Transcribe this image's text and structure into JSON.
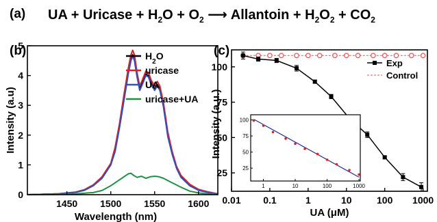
{
  "equation": {
    "label": "(a)",
    "reactants": [
      "UA",
      "Uricase",
      "H2O",
      "O2"
    ],
    "products": [
      "Allantoin",
      "H2O2",
      "CO2"
    ]
  },
  "chart_data": [
    {
      "panel_label": "(b)",
      "type": "line",
      "xlabel": "Wavelength (nm)",
      "ylabel": "Intensity (a.u)",
      "xlim": [
        1405,
        1622
      ],
      "ylim": [
        0,
        5
      ],
      "xticks": [
        1450,
        1500,
        1550,
        1600
      ],
      "yticks": [
        0,
        1,
        2,
        3,
        4,
        5
      ],
      "legend_position": "top-right",
      "series": [
        {
          "name": "H2O",
          "color": "#000000",
          "x": [
            1405,
            1440,
            1460,
            1470,
            1480,
            1490,
            1500,
            1505,
            1510,
            1515,
            1520,
            1523,
            1525,
            1527,
            1530,
            1533,
            1536,
            1540,
            1543,
            1546,
            1550,
            1553,
            1556,
            1560,
            1565,
            1570,
            1575,
            1580,
            1590,
            1600,
            1610,
            1622
          ],
          "y": [
            0.0,
            0.03,
            0.08,
            0.15,
            0.3,
            0.55,
            1.0,
            1.5,
            2.3,
            3.2,
            4.1,
            4.55,
            4.7,
            4.55,
            4.0,
            3.55,
            3.75,
            4.05,
            4.0,
            3.75,
            3.55,
            3.7,
            3.55,
            3.0,
            2.0,
            1.4,
            0.9,
            0.6,
            0.3,
            0.15,
            0.08,
            0.02
          ]
        },
        {
          "name": "uricase",
          "color": "#e02020",
          "x": [
            1405,
            1440,
            1460,
            1470,
            1480,
            1490,
            1500,
            1505,
            1510,
            1515,
            1520,
            1523,
            1525,
            1527,
            1530,
            1533,
            1536,
            1540,
            1543,
            1546,
            1550,
            1553,
            1556,
            1560,
            1565,
            1570,
            1575,
            1580,
            1590,
            1600,
            1610,
            1622
          ],
          "y": [
            0.0,
            0.03,
            0.09,
            0.17,
            0.33,
            0.6,
            1.05,
            1.6,
            2.4,
            3.35,
            4.25,
            4.7,
            4.85,
            4.7,
            4.1,
            3.65,
            3.85,
            4.15,
            4.1,
            3.85,
            3.65,
            3.8,
            3.65,
            3.1,
            2.1,
            1.45,
            0.95,
            0.65,
            0.35,
            0.18,
            0.1,
            0.03
          ]
        },
        {
          "name": "UA",
          "color": "#3050c0",
          "x": [
            1405,
            1440,
            1460,
            1470,
            1480,
            1490,
            1500,
            1505,
            1510,
            1515,
            1520,
            1523,
            1525,
            1527,
            1530,
            1533,
            1536,
            1540,
            1543,
            1546,
            1550,
            1553,
            1556,
            1560,
            1565,
            1570,
            1575,
            1580,
            1590,
            1600,
            1610,
            1622
          ],
          "y": [
            0.0,
            0.03,
            0.08,
            0.15,
            0.3,
            0.55,
            1.0,
            1.45,
            2.25,
            3.15,
            4.05,
            4.5,
            4.65,
            4.5,
            3.95,
            3.5,
            3.7,
            4.0,
            3.95,
            3.7,
            3.5,
            3.65,
            3.5,
            2.95,
            1.95,
            1.35,
            0.88,
            0.58,
            0.3,
            0.15,
            0.08,
            0.02
          ]
        },
        {
          "name": "uricase+UA",
          "color": "#1e9040",
          "x": [
            1405,
            1440,
            1460,
            1480,
            1490,
            1500,
            1510,
            1515,
            1520,
            1523,
            1526,
            1530,
            1535,
            1540,
            1545,
            1550,
            1555,
            1560,
            1570,
            1580,
            1590,
            1600,
            1610,
            1622
          ],
          "y": [
            0.0,
            0.01,
            0.03,
            0.07,
            0.14,
            0.3,
            0.5,
            0.6,
            0.7,
            0.72,
            0.65,
            0.58,
            0.62,
            0.55,
            0.6,
            0.62,
            0.6,
            0.55,
            0.4,
            0.25,
            0.12,
            0.06,
            0.03,
            0.01
          ]
        }
      ]
    },
    {
      "panel_label": "(c)",
      "type": "line",
      "xscale": "log",
      "xlabel": "UA (μM)",
      "ylabel": "Intensity (a.u.)",
      "xlim": [
        0.01,
        1300
      ],
      "ylim": [
        12,
        112
      ],
      "xticks": [
        0.01,
        0.1,
        1,
        10,
        100,
        1000
      ],
      "xticklabels": [
        "0.01",
        "0.1",
        "1",
        "10",
        "100",
        "1000"
      ],
      "yticks": [
        25,
        50,
        75,
        100
      ],
      "legend_position": "top-right",
      "series": [
        {
          "name": "Exp",
          "color": "#000000",
          "marker": "filled-square",
          "x": [
            0.02,
            0.05,
            0.15,
            0.5,
            1.5,
            4,
            12,
            35,
            100,
            300,
            900
          ],
          "y": [
            108,
            105.5,
            104.5,
            99,
            89.5,
            79,
            63.5,
            52,
            36,
            22,
            15
          ],
          "err": [
            2.5,
            1.5,
            1.5,
            2,
            1.2,
            1.5,
            1.5,
            2,
            1,
            2.5,
            3
          ]
        },
        {
          "name": "Control",
          "color": "#e05050",
          "marker": "open-circle",
          "dashed": true,
          "x": [
            0.02,
            0.05,
            0.1,
            0.2,
            0.5,
            1,
            2,
            5,
            10,
            20,
            50,
            100,
            200,
            500,
            1000
          ],
          "y": [
            108,
            108,
            108,
            108,
            108,
            108,
            108,
            108,
            108,
            108,
            108,
            108,
            108,
            108,
            108
          ]
        }
      ],
      "inset": {
        "xscale": "log",
        "xlim": [
          0.4,
          1100
        ],
        "ylim": [
          5,
          108
        ],
        "xticks": [
          1,
          10,
          100,
          1000
        ],
        "xticklabels": [
          "1",
          "10",
          "100",
          "1000"
        ],
        "yticks": [
          25,
          50,
          75,
          100
        ],
        "points": {
          "color": "#e02020",
          "x": [
            0.5,
            1,
            2,
            5,
            10,
            20,
            50,
            100,
            200,
            500,
            1000
          ],
          "y": [
            99,
            91,
            81,
            71,
            63,
            55,
            47,
            38,
            31,
            22,
            15
          ]
        },
        "fit": {
          "color": "#1a2f99",
          "x": [
            0.5,
            1000
          ],
          "y": [
            101,
            11
          ]
        }
      }
    }
  ]
}
